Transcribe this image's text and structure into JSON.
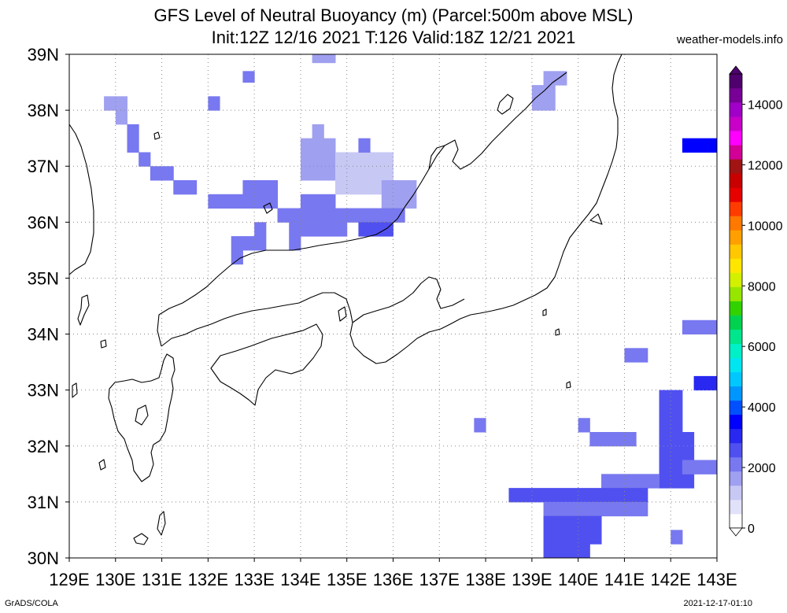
{
  "title": {
    "line1": "GFS Level of Neutral Buoyancy (m) (Parcel:500m above MSL)",
    "line2": "Init:12Z 12/16 2021 T:126 Valid:18Z 12/21 2021"
  },
  "source": "weather-models.info",
  "footer": {
    "credit": "GrADS/COLA",
    "timestamp": "2021-12-17-01:10"
  },
  "map": {
    "lon_range": [
      129,
      143
    ],
    "lat_range": [
      30,
      39
    ],
    "grid": true,
    "lon_labels": [
      "129E",
      "130E",
      "131E",
      "132E",
      "133E",
      "134E",
      "135E",
      "136E",
      "137E",
      "138E",
      "139E",
      "140E",
      "141E",
      "142E",
      "143E"
    ],
    "lat_labels": [
      "30N",
      "31N",
      "32N",
      "33N",
      "34N",
      "35N",
      "36N",
      "37N",
      "38N",
      "39N"
    ]
  },
  "colorbar": {
    "labels": [
      "0",
      "2000",
      "4000",
      "6000",
      "8000",
      "10000",
      "12000",
      "14000"
    ],
    "values": [
      0,
      2000,
      4000,
      6000,
      8000,
      10000,
      12000,
      14000
    ],
    "max": 15000,
    "colors": [
      "#ffffff",
      "#e1e1fa",
      "#c8c8f5",
      "#a0a0f0",
      "#7878f0",
      "#5050f0",
      "#2828f0",
      "#0000ff",
      "#0050ff",
      "#0096ff",
      "#00c8ff",
      "#00e6f0",
      "#00f0c8",
      "#00e68c",
      "#00d250",
      "#32d200",
      "#96e600",
      "#d2f000",
      "#ffe600",
      "#ffc800",
      "#ffa000",
      "#ff7800",
      "#ff3c00",
      "#e60000",
      "#c80000",
      "#a01414",
      "#d20096",
      "#ff00ff",
      "#c800c8",
      "#a000c8",
      "#780096",
      "#50006e"
    ]
  },
  "field": {
    "units": "m",
    "grid_spacing_deg": 0.25,
    "cells": [
      [
        134.25,
        38.85,
        134.75,
        39.0,
        1800
      ],
      [
        132.75,
        38.5,
        133.0,
        38.7,
        1900
      ],
      [
        139.25,
        38.45,
        139.75,
        38.7,
        1700
      ],
      [
        139.0,
        38.0,
        139.5,
        38.45,
        1700
      ],
      [
        129.75,
        38.0,
        130.25,
        38.25,
        1800
      ],
      [
        130.0,
        37.75,
        130.25,
        38.0,
        1800
      ],
      [
        132.0,
        38.0,
        132.25,
        38.25,
        2200
      ],
      [
        130.25,
        37.25,
        130.5,
        37.75,
        1900
      ],
      [
        130.5,
        37.0,
        130.75,
        37.25,
        1900
      ],
      [
        130.75,
        36.75,
        131.25,
        37.0,
        1900
      ],
      [
        131.25,
        36.5,
        131.75,
        36.75,
        2000
      ],
      [
        132.0,
        36.25,
        133.5,
        36.5,
        2100
      ],
      [
        132.75,
        36.5,
        133.5,
        36.75,
        2000
      ],
      [
        133.5,
        36.0,
        135.0,
        36.25,
        2100
      ],
      [
        134.0,
        36.25,
        134.75,
        36.5,
        2100
      ],
      [
        134.0,
        36.75,
        134.75,
        37.5,
        1700
      ],
      [
        134.25,
        37.5,
        134.5,
        37.75,
        1800
      ],
      [
        134.75,
        36.5,
        136.0,
        37.25,
        1400
      ],
      [
        135.25,
        37.25,
        135.5,
        37.5,
        1900
      ],
      [
        135.75,
        36.25,
        136.5,
        36.75,
        1700
      ],
      [
        135.0,
        36.0,
        136.25,
        36.25,
        2300
      ],
      [
        135.25,
        35.75,
        136.0,
        36.0,
        2600
      ],
      [
        133.0,
        35.75,
        133.25,
        36.0,
        2200
      ],
      [
        133.75,
        35.5,
        134.0,
        36.0,
        2000
      ],
      [
        132.5,
        35.25,
        132.75,
        35.75,
        2000
      ],
      [
        132.75,
        35.5,
        133.25,
        35.75,
        2100
      ],
      [
        134.0,
        35.75,
        135.0,
        36.0,
        2000
      ],
      [
        142.25,
        37.25,
        143.0,
        37.5,
        3400
      ],
      [
        142.25,
        34.0,
        143.0,
        34.25,
        2200
      ],
      [
        141.0,
        33.5,
        141.5,
        33.75,
        2100
      ],
      [
        142.5,
        33.0,
        143.0,
        33.25,
        3000
      ],
      [
        141.75,
        32.25,
        142.25,
        33.0,
        2400
      ],
      [
        137.75,
        32.25,
        138.0,
        32.5,
        2200
      ],
      [
        140.0,
        32.25,
        140.25,
        32.5,
        2200
      ],
      [
        140.25,
        32.0,
        141.25,
        32.25,
        2300
      ],
      [
        141.75,
        31.25,
        142.5,
        32.25,
        2500
      ],
      [
        142.25,
        31.5,
        143.0,
        31.75,
        2300
      ],
      [
        140.5,
        31.25,
        141.75,
        31.5,
        2200
      ],
      [
        138.5,
        31.0,
        141.5,
        31.25,
        2400
      ],
      [
        139.25,
        30.75,
        141.5,
        31.0,
        2300
      ],
      [
        139.25,
        30.25,
        140.5,
        30.75,
        2400
      ],
      [
        139.25,
        30.0,
        140.25,
        30.25,
        2400
      ],
      [
        142.0,
        30.25,
        142.25,
        30.5,
        2300
      ]
    ]
  },
  "coastline_style": {
    "color": "#000000"
  }
}
